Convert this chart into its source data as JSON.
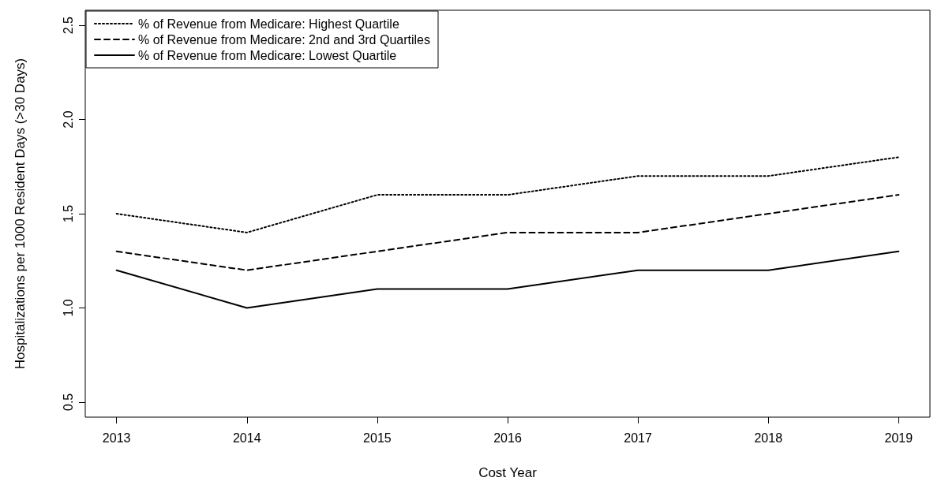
{
  "chart_data": {
    "type": "line",
    "xlabel": "Cost Year",
    "ylabel": "Hospitalizations per 1000 Resident Days (>30 Days)",
    "x": [
      2013,
      2014,
      2015,
      2016,
      2017,
      2018,
      2019
    ],
    "series": [
      {
        "name": "% of Revenue from Medicare: Highest Quartile",
        "color": "#000000",
        "line_style": "dotted",
        "values": [
          1.5,
          1.4,
          1.6,
          1.6,
          1.7,
          1.7,
          1.8
        ]
      },
      {
        "name": "% of Revenue from Medicare: 2nd and 3rd Quartiles",
        "color": "#000000",
        "line_style": "dashed",
        "values": [
          1.3,
          1.2,
          1.3,
          1.4,
          1.4,
          1.5,
          1.6
        ]
      },
      {
        "name": "% of Revenue from Medicare: Lowest Quartile",
        "color": "#000000",
        "line_style": "solid",
        "values": [
          1.2,
          1.0,
          1.1,
          1.1,
          1.2,
          1.2,
          1.3
        ]
      }
    ],
    "xlim": [
      2012.76,
      2019.24
    ],
    "xticks": [
      2013,
      2014,
      2015,
      2016,
      2017,
      2018,
      2019
    ],
    "ylim": [
      0.42,
      2.58
    ],
    "yticks": [
      0.5,
      {
        "value": 1,
        "label": "1.0"
      },
      1.5,
      {
        "value": 2,
        "label": "2.0"
      },
      2.5
    ],
    "grid": false,
    "legend": "top left",
    "marker": "none"
  }
}
